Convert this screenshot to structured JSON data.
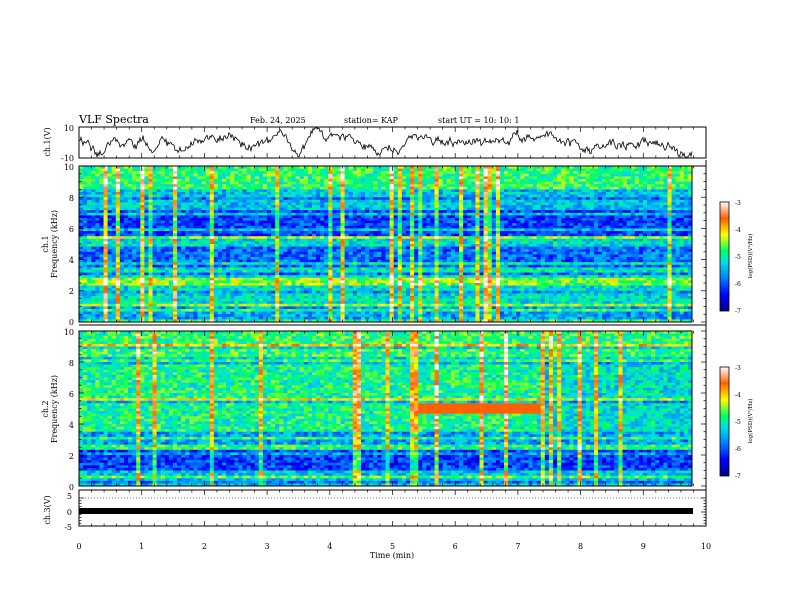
{
  "header": {
    "title": "VLF Spectra",
    "date": "Feb. 24, 2025",
    "station": "station= KAP",
    "start": "start  UT =   10: 10: 1"
  },
  "chart_data": [
    {
      "type": "line",
      "ylabel": "ch.1(V)",
      "ylim": [
        -10,
        10
      ],
      "yticks": [
        "10",
        "-10"
      ],
      "xlim": [
        0,
        10
      ],
      "grid": false
    },
    {
      "type": "heatmap",
      "ylabel_1": "ch.1",
      "ylabel_2": "Frequency (kHz)",
      "ylim": [
        0,
        10
      ],
      "yticks": [
        "0",
        "2",
        "4",
        "6",
        "8",
        "10"
      ],
      "xlim": [
        0,
        10
      ],
      "colorbar": {
        "ticks": [
          "-3",
          "-4",
          "-5",
          "-6",
          "-7"
        ],
        "label": "log(PSD)(V²/Hz)",
        "range": [
          -7,
          -3
        ]
      }
    },
    {
      "type": "heatmap",
      "ylabel_1": "ch.2",
      "ylabel_2": "Frequency (kHz)",
      "ylim": [
        0,
        10
      ],
      "yticks": [
        "0",
        "2",
        "4",
        "6",
        "8",
        "10"
      ],
      "xlim": [
        0,
        10
      ],
      "colorbar": {
        "ticks": [
          "-3",
          "-4",
          "-5",
          "-6",
          "-7"
        ],
        "label": "log(PSD)(V²/Hz)",
        "range": [
          -7,
          -3
        ]
      }
    },
    {
      "type": "line",
      "ylabel": "ch.3(V)",
      "ylim": [
        -5,
        5
      ],
      "yticks": [
        "5",
        "0",
        "-5"
      ],
      "xlim": [
        0,
        10
      ],
      "xlabel": "Time  (min)",
      "xticks": [
        "0",
        "1",
        "2",
        "3",
        "4",
        "5",
        "6",
        "7",
        "8",
        "9",
        "10"
      ]
    }
  ]
}
